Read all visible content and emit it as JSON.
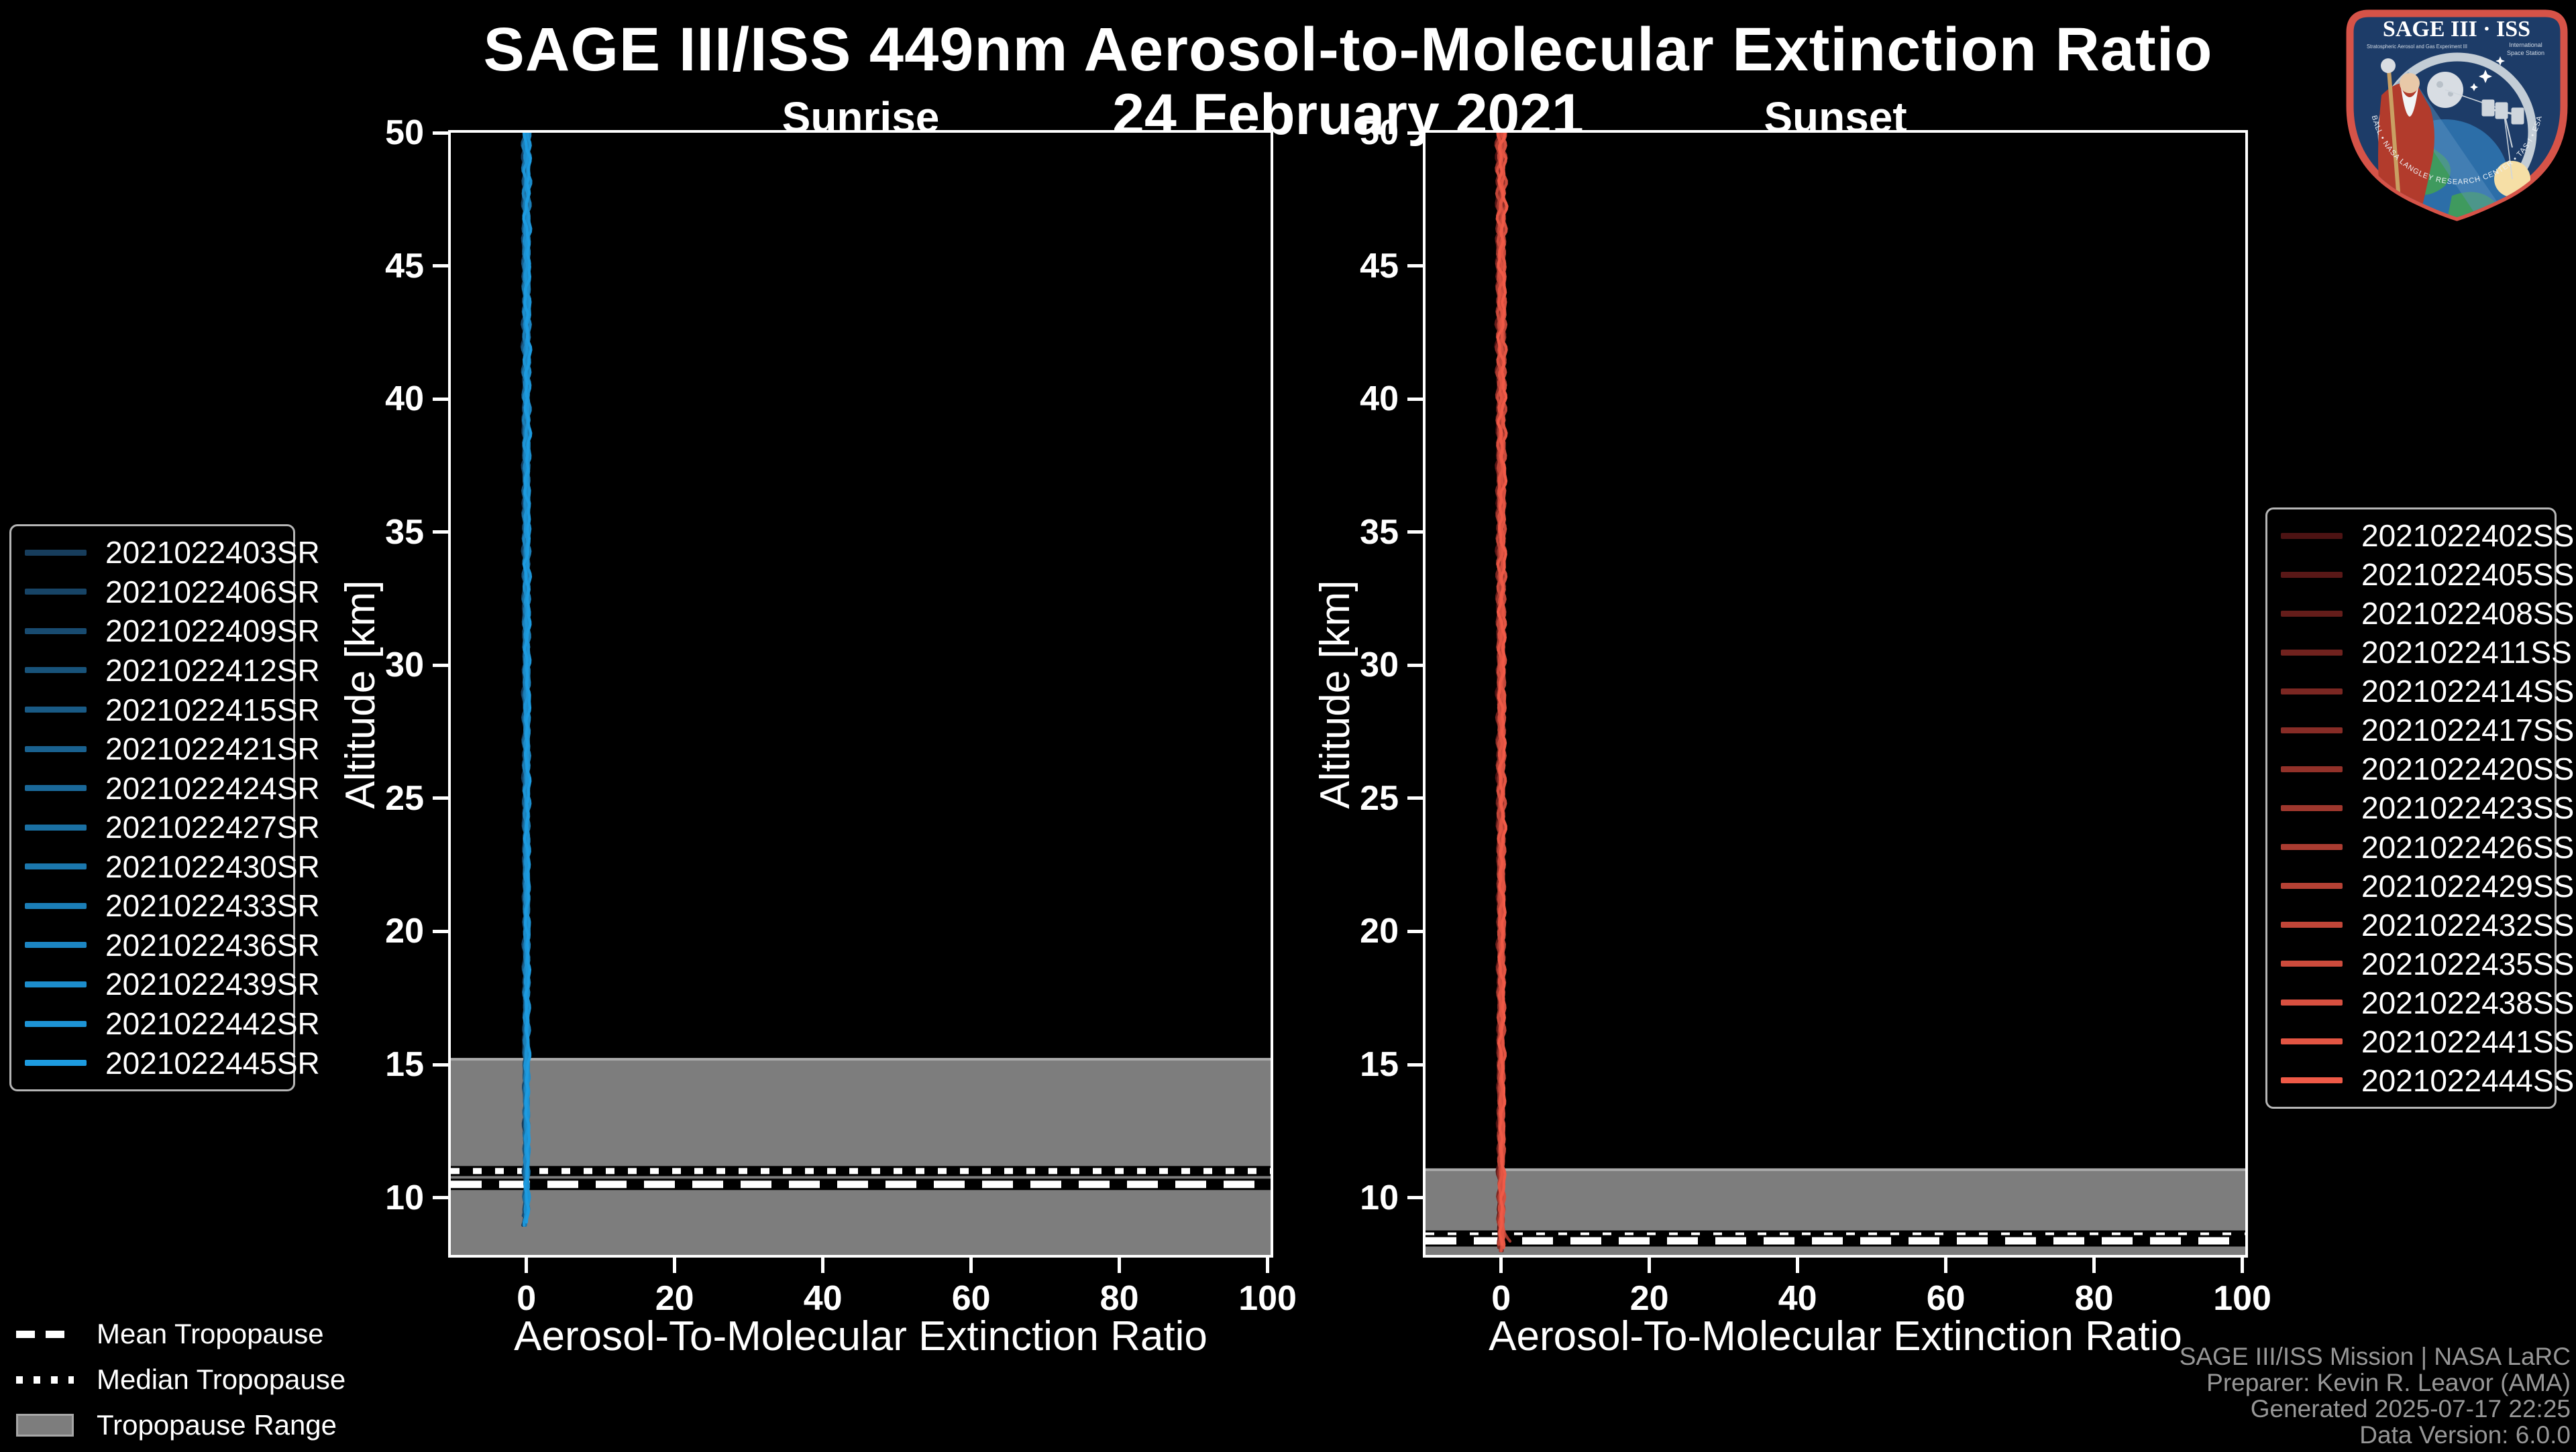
{
  "header": {
    "title": "SAGE III/ISS 449nm Aerosol-to-Molecular Extinction Ratio",
    "date": "24 February 2021"
  },
  "panels": [
    {
      "id": "sunrise",
      "title": "Sunrise",
      "xlabel": "Aerosol-To-Molecular Extinction Ratio",
      "ylabel": "Altitude [km]",
      "x_ticks": [
        0,
        20,
        40,
        60,
        80,
        100
      ],
      "y_ticks": [
        50,
        45,
        40,
        35,
        30,
        25,
        20,
        15,
        10
      ],
      "color_dark": "#173d5c",
      "color_bright": "#1d9be0",
      "events": [
        "2021022403SR",
        "2021022406SR",
        "2021022409SR",
        "2021022412SR",
        "2021022415SR",
        "2021022421SR",
        "2021022424SR",
        "2021022427SR",
        "2021022430SR",
        "2021022433SR",
        "2021022436SR",
        "2021022439SR",
        "2021022442SR",
        "2021022445SR"
      ],
      "tropopause": {
        "mean_km": 10.5,
        "median_km": 11.0,
        "range_top_km": 15.2
      }
    },
    {
      "id": "sunset",
      "title": "Sunset",
      "xlabel": "Aerosol-To-Molecular Extinction Ratio",
      "ylabel": "Altitude [km]",
      "x_ticks": [
        0,
        20,
        40,
        60,
        80,
        100
      ],
      "y_ticks": [
        50,
        45,
        40,
        35,
        30,
        25,
        20,
        15,
        10
      ],
      "color_dark": "#4d1313",
      "color_bright": "#ef5a47",
      "events": [
        "2021022402SS",
        "2021022405SS",
        "2021022408SS",
        "2021022411SS",
        "2021022414SS",
        "2021022417SS",
        "2021022420SS",
        "2021022423SS",
        "2021022426SS",
        "2021022429SS",
        "2021022432SS",
        "2021022435SS",
        "2021022438SS",
        "2021022441SS",
        "2021022444SS"
      ],
      "tropopause": {
        "mean_km": 8.38,
        "median_km": 8.58,
        "range_top_km": 11.05
      }
    }
  ],
  "tropopause_legend": [
    {
      "label": "Mean Tropopause",
      "style": "dashed"
    },
    {
      "label": "Median Tropopause",
      "style": "dotted"
    },
    {
      "label": "Tropopause Range",
      "style": "filled-band",
      "color": "#7d7d7d"
    }
  ],
  "credits": [
    "SAGE III/ISS Mission | NASA LaRC",
    "Preparer: Kevin R. Leavor (AMA)",
    "Generated 2025-07-17 22:25",
    "Data Version: 6.0.0"
  ],
  "logo": {
    "title": "SAGE III · ISS",
    "subtitle_left": "Stratospheric Aerosol and Gas Experiment III",
    "subtitle_right_1": "International",
    "subtitle_right_2": "Space Station",
    "ring_text": "BALL • NASA LANGLEY RESEARCH CENTER • TAS-I • ESA"
  },
  "chart_data": [
    {
      "type": "line",
      "title": "Sunrise",
      "xlabel": "Aerosol-To-Molecular Extinction Ratio",
      "ylabel": "Altitude [km]",
      "xlim": [
        -10,
        100
      ],
      "ylim": [
        7.9,
        50
      ],
      "x_ticks": [
        0,
        20,
        40,
        60,
        80,
        100
      ],
      "y_ticks": [
        50,
        45,
        40,
        35,
        30,
        25,
        20,
        15,
        10
      ],
      "grid": false,
      "legend_position": "outside-left",
      "series": [
        {
          "name": "2021022403SR",
          "ratio_approx": 0,
          "alt_range_km": [
            9.0,
            50
          ]
        },
        {
          "name": "2021022406SR",
          "ratio_approx": 0,
          "alt_range_km": [
            9.0,
            50
          ]
        },
        {
          "name": "2021022409SR",
          "ratio_approx": 0,
          "alt_range_km": [
            9.0,
            50
          ]
        },
        {
          "name": "2021022412SR",
          "ratio_approx": 0,
          "alt_range_km": [
            9.0,
            50
          ]
        },
        {
          "name": "2021022415SR",
          "ratio_approx": 0,
          "alt_range_km": [
            9.0,
            50
          ]
        },
        {
          "name": "2021022421SR",
          "ratio_approx": 0,
          "alt_range_km": [
            9.0,
            50
          ]
        },
        {
          "name": "2021022424SR",
          "ratio_approx": 0,
          "alt_range_km": [
            9.0,
            50
          ]
        },
        {
          "name": "2021022427SR",
          "ratio_approx": 0,
          "alt_range_km": [
            9.0,
            50
          ]
        },
        {
          "name": "2021022430SR",
          "ratio_approx": 0,
          "alt_range_km": [
            9.0,
            50
          ]
        },
        {
          "name": "2021022433SR",
          "ratio_approx": 0,
          "alt_range_km": [
            9.0,
            50
          ]
        },
        {
          "name": "2021022436SR",
          "ratio_approx": 0,
          "alt_range_km": [
            9.0,
            50
          ]
        },
        {
          "name": "2021022439SR",
          "ratio_approx": 0,
          "alt_range_km": [
            9.0,
            50
          ]
        },
        {
          "name": "2021022442SR",
          "ratio_approx": 0,
          "alt_range_km": [
            9.0,
            50
          ]
        },
        {
          "name": "2021022445SR",
          "ratio_approx": 0,
          "alt_range_km": [
            9.0,
            50
          ]
        }
      ],
      "profile_note": "All sunrise profiles cluster at extinction ratio ~0 (within about ±0.8) from ~9 km up to 50 km",
      "tropopause": {
        "mean_km": 10.5,
        "median_km": 11.0,
        "range_km": [
          7.9,
          15.2
        ]
      }
    },
    {
      "type": "line",
      "title": "Sunset",
      "xlabel": "Aerosol-To-Molecular Extinction Ratio",
      "ylabel": "Altitude [km]",
      "xlim": [
        -10,
        100
      ],
      "ylim": [
        7.9,
        50
      ],
      "x_ticks": [
        0,
        20,
        40,
        60,
        80,
        100
      ],
      "y_ticks": [
        50,
        45,
        40,
        35,
        30,
        25,
        20,
        15,
        10
      ],
      "grid": false,
      "legend_position": "outside-right",
      "series": [
        {
          "name": "2021022402SS",
          "ratio_approx": 0,
          "alt_range_km": [
            8.1,
            50
          ]
        },
        {
          "name": "2021022405SS",
          "ratio_approx": 0,
          "alt_range_km": [
            8.1,
            50
          ]
        },
        {
          "name": "2021022408SS",
          "ratio_approx": 0,
          "alt_range_km": [
            8.1,
            50
          ]
        },
        {
          "name": "2021022411SS",
          "ratio_approx": 0,
          "alt_range_km": [
            8.1,
            50
          ]
        },
        {
          "name": "2021022414SS",
          "ratio_approx": 0,
          "alt_range_km": [
            8.1,
            50
          ]
        },
        {
          "name": "2021022417SS",
          "ratio_approx": 0,
          "alt_range_km": [
            8.1,
            50
          ]
        },
        {
          "name": "2021022420SS",
          "ratio_approx": 0,
          "alt_range_km": [
            8.1,
            50
          ]
        },
        {
          "name": "2021022423SS",
          "ratio_approx": 0,
          "alt_range_km": [
            8.1,
            50
          ]
        },
        {
          "name": "2021022426SS",
          "ratio_approx": 0,
          "alt_range_km": [
            8.1,
            50
          ]
        },
        {
          "name": "2021022429SS",
          "ratio_approx": 0,
          "alt_range_km": [
            8.1,
            50
          ]
        },
        {
          "name": "2021022432SS",
          "ratio_approx": 0,
          "alt_range_km": [
            8.1,
            50
          ]
        },
        {
          "name": "2021022435SS",
          "ratio_approx": 0,
          "alt_range_km": [
            8.1,
            50
          ]
        },
        {
          "name": "2021022438SS",
          "ratio_approx": 0,
          "alt_range_km": [
            8.1,
            50
          ]
        },
        {
          "name": "2021022441SS",
          "ratio_approx": 0,
          "alt_range_km": [
            8.1,
            50
          ]
        },
        {
          "name": "2021022444SS",
          "ratio_approx": 0,
          "alt_range_km": [
            8.1,
            50
          ]
        }
      ],
      "profile_note": "All sunset profiles cluster at extinction ratio ~0 (within about ±1) from ~8.1 km up to 50 km, with a small rightward bulge near 8.4 km",
      "tropopause": {
        "mean_km": 8.38,
        "median_km": 8.58,
        "range_km": [
          7.9,
          11.05
        ]
      }
    }
  ]
}
